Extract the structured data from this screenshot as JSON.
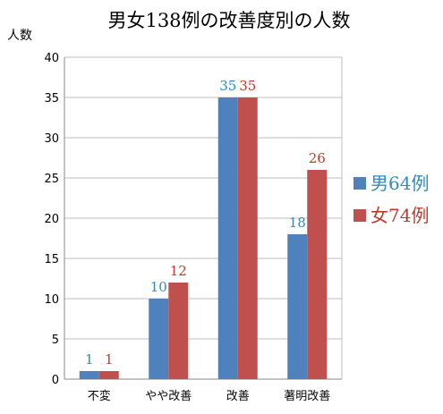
{
  "chart_data": {
    "type": "bar",
    "title": "男女138例の改善度別の人数",
    "ylabel": "人数",
    "xlabel": "",
    "categories": [
      "不変",
      "やや改善",
      "改善",
      "著明改善"
    ],
    "series": [
      {
        "name": "男64例",
        "values": [
          1,
          10,
          35,
          18
        ],
        "color": "#4f81bd",
        "label_color": "#2e8bc0"
      },
      {
        "name": "女74例",
        "values": [
          1,
          12,
          35,
          26
        ],
        "color": "#c0504d",
        "label_color": "#c0392b"
      }
    ],
    "ylim": [
      0,
      40
    ],
    "yticks": [
      0,
      5,
      10,
      15,
      20,
      25,
      30,
      35,
      40
    ],
    "grid": true,
    "legend": "right"
  }
}
